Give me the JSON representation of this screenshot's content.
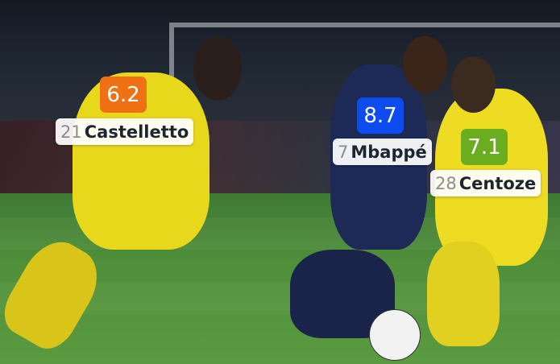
{
  "players": [
    {
      "number": "21",
      "name": "Castelletto",
      "rating": "6.2",
      "rating_color": "#f07014"
    },
    {
      "number": "7",
      "name": "Mbappé",
      "rating": "8.7",
      "rating_color": "#0f4cf0"
    },
    {
      "number": "28",
      "name": "Centoze",
      "rating": "7.1",
      "rating_color": "#6aad1e"
    }
  ],
  "colors": {
    "nantes_kit": "#f2e224",
    "psg_kit": "#1c2a55",
    "pitch": "#4f8f3a"
  }
}
